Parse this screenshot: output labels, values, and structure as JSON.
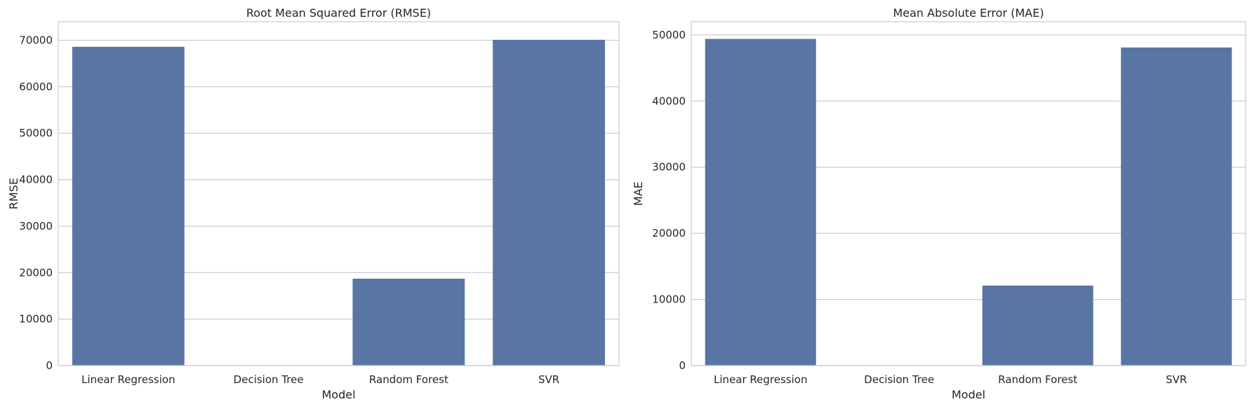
{
  "chart_data": [
    {
      "type": "bar",
      "title": "Root Mean Squared Error (RMSE)",
      "xlabel": "Model",
      "ylabel": "RMSE",
      "categories": [
        "Linear Regression",
        "Decision Tree",
        "Random Forest",
        "SVR"
      ],
      "values": [
        68600,
        0,
        18700,
        70100
      ],
      "ylim": [
        0,
        74000
      ],
      "yticks": [
        0,
        10000,
        20000,
        30000,
        40000,
        50000,
        60000,
        70000
      ],
      "grid": "y",
      "bar_color": "#5875a4"
    },
    {
      "type": "bar",
      "title": "Mean Absolute Error (MAE)",
      "xlabel": "Model",
      "ylabel": "MAE",
      "categories": [
        "Linear Regression",
        "Decision Tree",
        "Random Forest",
        "SVR"
      ],
      "values": [
        49400,
        0,
        12100,
        48100
      ],
      "ylim": [
        0,
        52000
      ],
      "yticks": [
        0,
        10000,
        20000,
        30000,
        40000,
        50000
      ],
      "grid": "y",
      "bar_color": "#5875a4"
    }
  ]
}
